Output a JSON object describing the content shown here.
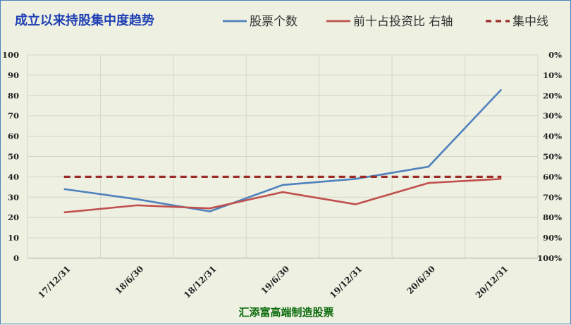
{
  "chart_data": {
    "type": "line",
    "title": "成立以来持股集中度趋势",
    "footer": "汇添富高端制造股票",
    "categories": [
      "17/12/31",
      "18/6/30",
      "18/12/31",
      "19/6/30",
      "19/12/31",
      "20/6/30",
      "20/12/31"
    ],
    "series": [
      {
        "name": "股票个数",
        "axis": "left",
        "color": "#4f81bd",
        "style": "solid",
        "values": [
          34,
          29,
          23,
          36,
          39,
          45,
          83
        ]
      },
      {
        "name": "前十占投资比 右轴",
        "axis": "right",
        "color": "#c0504d",
        "style": "solid",
        "values": [
          77.5,
          74,
          75.5,
          67.5,
          73.5,
          63,
          61
        ]
      },
      {
        "name": "集中线",
        "axis": "right",
        "color": "#9b2b27",
        "style": "dashed",
        "values": [
          60,
          60,
          60,
          60,
          60,
          60,
          60
        ]
      }
    ],
    "y_left": {
      "min": 0,
      "max": 100,
      "step": 10,
      "ticks": [
        "0",
        "10",
        "20",
        "30",
        "40",
        "50",
        "60",
        "70",
        "80",
        "90",
        "100"
      ]
    },
    "y_right": {
      "min": 0,
      "max": 100,
      "step": 10,
      "inverted": true,
      "ticks": [
        "0%",
        "10%",
        "20%",
        "30%",
        "40%",
        "50%",
        "60%",
        "70%",
        "80%",
        "90%",
        "100%"
      ]
    },
    "grid": true,
    "legend_position": "top"
  }
}
